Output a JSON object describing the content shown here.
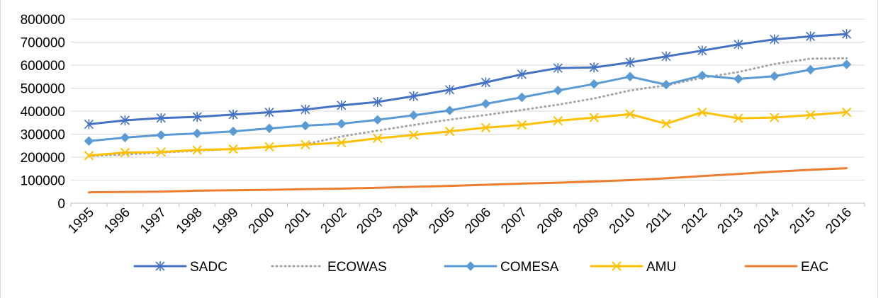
{
  "chart_data": {
    "type": "line",
    "title": "",
    "xlabel": "",
    "ylabel": "",
    "ylim": [
      0,
      800000
    ],
    "yticks": [
      0,
      100000,
      200000,
      300000,
      400000,
      500000,
      600000,
      700000,
      800000
    ],
    "grid": "horizontal",
    "legend": "bottom",
    "categories": [
      "1995",
      "1996",
      "1997",
      "1998",
      "1999",
      "2000",
      "2001",
      "2002",
      "2003",
      "2004",
      "2005",
      "2006",
      "2007",
      "2008",
      "2009",
      "2010",
      "2011",
      "2012",
      "2013",
      "2014",
      "2015",
      "2016"
    ],
    "series": [
      {
        "name": "SADC",
        "color": "#4472C4",
        "marker": "asterisk",
        "dash": "solid",
        "values": [
          343000,
          360000,
          370000,
          375000,
          385000,
          395000,
          407000,
          425000,
          440000,
          465000,
          493000,
          525000,
          560000,
          587000,
          590000,
          612000,
          638000,
          663000,
          690000,
          712000,
          725000,
          735000
        ]
      },
      {
        "name": "ECOWAS",
        "color": "#A5A5A5",
        "marker": "none",
        "dash": "dotted",
        "values": [
          205000,
          212000,
          220000,
          228000,
          236000,
          244000,
          256000,
          290000,
          315000,
          340000,
          363000,
          383000,
          405000,
          428000,
          455000,
          490000,
          512000,
          545000,
          570000,
          605000,
          628000,
          630000
        ]
      },
      {
        "name": "COMESA",
        "color": "#5B9BD5",
        "marker": "diamond",
        "dash": "solid",
        "values": [
          270000,
          285000,
          296000,
          303000,
          312000,
          325000,
          337000,
          345000,
          362000,
          382000,
          403000,
          432000,
          460000,
          490000,
          518000,
          550000,
          515000,
          555000,
          540000,
          552000,
          580000,
          603000
        ]
      },
      {
        "name": "AMU",
        "color": "#FFC000",
        "marker": "x",
        "dash": "solid",
        "values": [
          207000,
          220000,
          222000,
          231000,
          235000,
          245000,
          254000,
          263000,
          282000,
          296000,
          312000,
          328000,
          340000,
          358000,
          372000,
          387000,
          345000,
          395000,
          369000,
          372000,
          383000,
          395000
        ]
      },
      {
        "name": "EAC",
        "color": "#ED7D31",
        "marker": "none",
        "dash": "solid",
        "values": [
          47000,
          49000,
          50000,
          54000,
          56000,
          58000,
          61000,
          63000,
          67000,
          71000,
          75000,
          80000,
          85000,
          89000,
          94000,
          100000,
          108000,
          118000,
          127000,
          137000,
          145000,
          152000
        ]
      }
    ]
  }
}
